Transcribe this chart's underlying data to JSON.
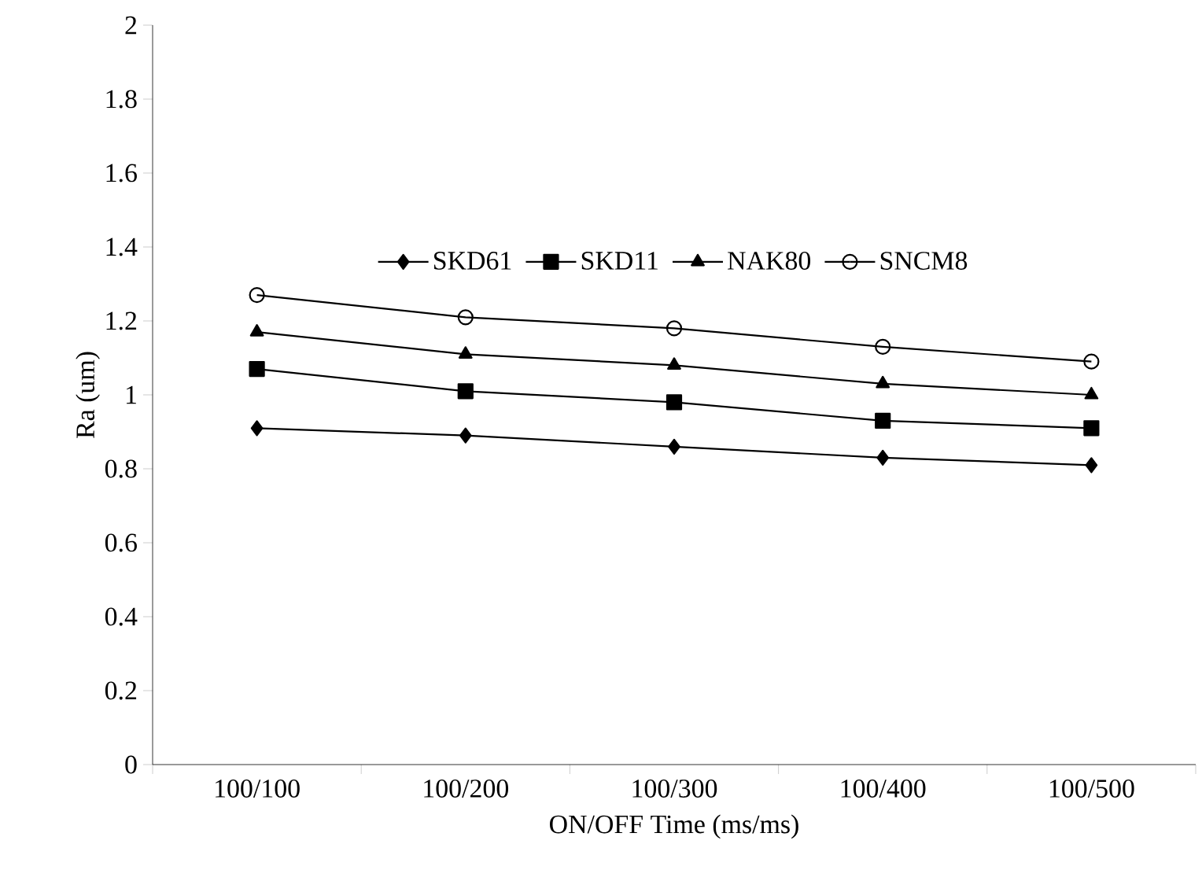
{
  "chart_data": {
    "type": "line",
    "xlabel": "ON/OFF Time (ms/ms)",
    "ylabel": "Ra (um)",
    "categories": [
      "100/100",
      "100/200",
      "100/300",
      "100/400",
      "100/500"
    ],
    "series": [
      {
        "name": "SKD61",
        "color": "#000000",
        "marker": "diamond",
        "values": [
          0.91,
          0.89,
          0.86,
          0.83,
          0.81
        ]
      },
      {
        "name": "SKD11",
        "color": "#000000",
        "marker": "square",
        "values": [
          1.07,
          1.01,
          0.98,
          0.93,
          0.91
        ]
      },
      {
        "name": "NAK80",
        "color": "#000000",
        "marker": "triangle",
        "values": [
          1.17,
          1.11,
          1.08,
          1.03,
          1.0
        ]
      },
      {
        "name": "SNCM8",
        "color": "#000000",
        "marker": "circle",
        "values": [
          1.27,
          1.21,
          1.18,
          1.13,
          1.09
        ]
      }
    ],
    "ylim": [
      0,
      2
    ],
    "yticks": [
      0,
      0.2,
      0.4,
      0.6,
      0.8,
      1,
      1.2,
      1.4,
      1.6,
      1.8,
      2
    ],
    "grid": false,
    "legend": "center",
    "line_style": "solid"
  }
}
